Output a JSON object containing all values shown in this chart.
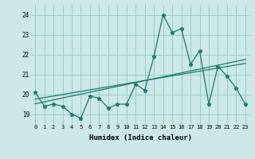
{
  "x": [
    0,
    1,
    2,
    3,
    4,
    5,
    6,
    7,
    8,
    9,
    10,
    11,
    12,
    13,
    14,
    15,
    16,
    17,
    18,
    19,
    20,
    21,
    22,
    23
  ],
  "y": [
    20.1,
    19.4,
    19.5,
    19.4,
    19.0,
    18.8,
    19.9,
    19.8,
    19.3,
    19.5,
    19.5,
    20.5,
    20.2,
    21.9,
    24.0,
    23.1,
    23.3,
    21.5,
    22.2,
    19.5,
    21.4,
    20.9,
    20.3,
    19.5
  ],
  "title": "",
  "xlabel": "Humidex (Indice chaleur)",
  "ylabel": "",
  "ylim": [
    18.5,
    24.5
  ],
  "xlim": [
    -0.5,
    23.5
  ],
  "line_color": "#1a7a6e",
  "bg_color": "#cce8e8",
  "grid_color": "#99cccc",
  "trend1_x": [
    0.0,
    23.0
  ],
  "trend1_y": [
    19.52,
    21.75
  ],
  "trend2_x": [
    0.0,
    23.0
  ],
  "trend2_y": [
    19.75,
    21.55
  ]
}
